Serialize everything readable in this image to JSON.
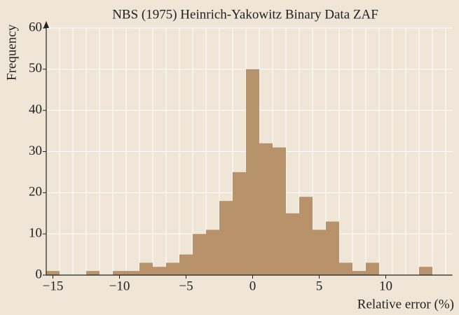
{
  "chart_data": {
    "type": "histogram",
    "title": "NBS (1975) Heinrich-Yakowitz Binary Data ZAF",
    "x_label": "Relative error (%)",
    "y_label": "Frequency",
    "bins": [
      -15.5,
      -14.5,
      -13.5,
      -12.5,
      -11.5,
      -10.5,
      -9.5,
      -8.5,
      -7.5,
      -6.5,
      -5.5,
      -4.5,
      -3.5,
      -2.5,
      -1.5,
      -0.5,
      0.5,
      1.5,
      2.5,
      3.5,
      4.5,
      5.5,
      6.5,
      7.5,
      8.5,
      9.5,
      10.5,
      11.5,
      12.5,
      13.5,
      14.5
    ],
    "values": [
      1,
      0,
      0,
      1,
      0,
      1,
      1,
      3,
      2,
      3,
      5,
      10,
      11,
      18,
      25,
      50,
      32,
      31,
      15,
      19,
      11,
      13,
      3,
      1,
      3,
      0,
      0,
      0,
      2,
      0
    ],
    "color": "#b8926a",
    "xlim": [
      -15.5,
      15
    ],
    "ylim": [
      0,
      60
    ],
    "xticks": [
      {
        "value": -15,
        "label": "−15"
      },
      {
        "value": -10,
        "label": "−10"
      },
      {
        "value": -5,
        "label": "−5"
      },
      0,
      5,
      10
    ],
    "yticks": [
      0,
      10,
      20,
      30,
      40,
      50,
      60
    ],
    "grid": true
  }
}
